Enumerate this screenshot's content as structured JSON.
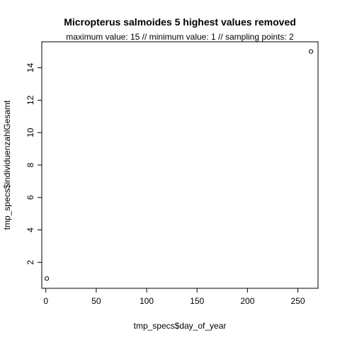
{
  "chart_data": {
    "type": "scatter",
    "title": "Micropterus salmoides  5 highest values removed",
    "subtitle": "maximum value: 15  //  minimum value: 1  // sampling points: 2",
    "xlabel": "tmp_specs$day_of_year",
    "ylabel": "tmp_specs$individuenzahlGesamt",
    "xlim": [
      -4,
      270
    ],
    "ylim": [
      0.4,
      15.6
    ],
    "x_ticks": [
      0,
      50,
      100,
      150,
      200,
      250
    ],
    "y_ticks": [
      2,
      4,
      6,
      8,
      10,
      12,
      14
    ],
    "points": [
      {
        "x": 1,
        "y": 1
      },
      {
        "x": 263,
        "y": 15
      }
    ],
    "marker": "open-circle",
    "grid": false
  }
}
